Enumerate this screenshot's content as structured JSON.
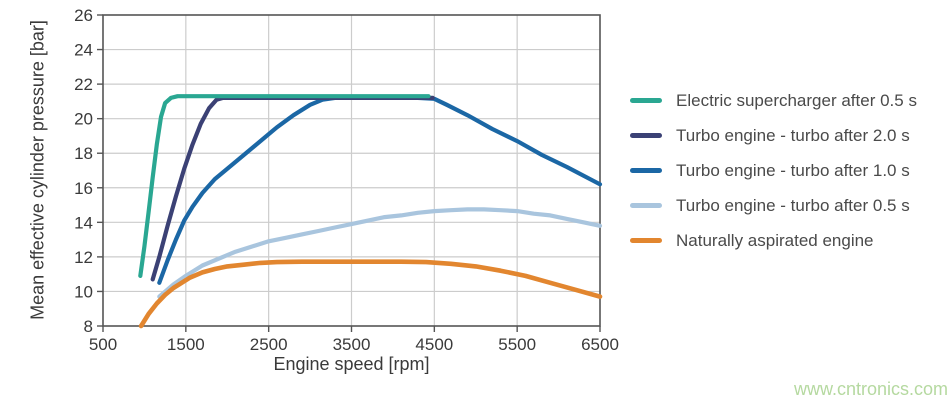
{
  "watermark": {
    "text": "www.cntronics.com",
    "color": "#b5d9a0"
  },
  "colors": {
    "background": "#ffffff",
    "grid": "#cccccc",
    "axis": "#555555",
    "tick_text": "#3a3a3a",
    "legend_text": "#4a4a4a"
  },
  "chart_data": {
    "type": "line",
    "title": "",
    "xlabel": "Engine speed [rpm]",
    "ylabel": "Mean effective cylinder pressure [bar]",
    "xlim": [
      500,
      6500
    ],
    "ylim": [
      8,
      26
    ],
    "x_ticks": [
      500,
      1500,
      2500,
      3500,
      4500,
      5500,
      6500
    ],
    "y_ticks": [
      8,
      10,
      12,
      14,
      16,
      18,
      20,
      22,
      24,
      26
    ],
    "grid": true,
    "legend_position": "right",
    "series": [
      {
        "id": "electric-supercharger",
        "name": "Electric supercharger after 0.5 s",
        "color": "#2aa792",
        "stroke_width": 4.2,
        "points": [
          [
            950,
            10.9
          ],
          [
            1000,
            12.6
          ],
          [
            1050,
            14.6
          ],
          [
            1100,
            16.6
          ],
          [
            1150,
            18.5
          ],
          [
            1200,
            20.1
          ],
          [
            1250,
            20.9
          ],
          [
            1320,
            21.2
          ],
          [
            1400,
            21.3
          ],
          [
            2000,
            21.3
          ],
          [
            2500,
            21.3
          ],
          [
            3000,
            21.3
          ],
          [
            3500,
            21.3
          ],
          [
            4000,
            21.3
          ],
          [
            4430,
            21.3
          ]
        ]
      },
      {
        "id": "turbo-2-0s",
        "name": "Turbo engine - turbo after 2.0 s",
        "color": "#3b4175",
        "stroke_width": 4.2,
        "points": [
          [
            1100,
            10.7
          ],
          [
            1180,
            12.0
          ],
          [
            1280,
            13.8
          ],
          [
            1380,
            15.5
          ],
          [
            1480,
            17.1
          ],
          [
            1580,
            18.5
          ],
          [
            1680,
            19.7
          ],
          [
            1780,
            20.6
          ],
          [
            1870,
            21.1
          ],
          [
            1950,
            21.2
          ],
          [
            2500,
            21.2
          ],
          [
            3000,
            21.2
          ],
          [
            3500,
            21.2
          ],
          [
            4000,
            21.2
          ],
          [
            4480,
            21.2
          ]
        ]
      },
      {
        "id": "turbo-1-0s",
        "name": "Turbo engine - turbo after 1.0 s",
        "color": "#1b67a5",
        "stroke_width": 4.2,
        "points": [
          [
            1180,
            10.5
          ],
          [
            1280,
            11.8
          ],
          [
            1380,
            13.0
          ],
          [
            1480,
            14.1
          ],
          [
            1580,
            14.9
          ],
          [
            1700,
            15.7
          ],
          [
            1850,
            16.5
          ],
          [
            2000,
            17.1
          ],
          [
            2200,
            17.9
          ],
          [
            2400,
            18.7
          ],
          [
            2600,
            19.5
          ],
          [
            2800,
            20.2
          ],
          [
            3000,
            20.8
          ],
          [
            3150,
            21.1
          ],
          [
            3300,
            21.2
          ],
          [
            3800,
            21.2
          ],
          [
            4300,
            21.2
          ],
          [
            4500,
            21.15
          ],
          [
            4650,
            20.8
          ],
          [
            4900,
            20.2
          ],
          [
            5200,
            19.4
          ],
          [
            5500,
            18.7
          ],
          [
            5800,
            17.9
          ],
          [
            6100,
            17.2
          ],
          [
            6500,
            16.2
          ]
        ]
      },
      {
        "id": "turbo-0-5s",
        "name": "Turbo engine - turbo after 0.5 s",
        "color": "#a9c5de",
        "stroke_width": 4.2,
        "points": [
          [
            1180,
            9.7
          ],
          [
            1350,
            10.4
          ],
          [
            1500,
            10.9
          ],
          [
            1700,
            11.5
          ],
          [
            1900,
            11.9
          ],
          [
            2100,
            12.3
          ],
          [
            2300,
            12.6
          ],
          [
            2500,
            12.9
          ],
          [
            2700,
            13.1
          ],
          [
            2900,
            13.3
          ],
          [
            3100,
            13.5
          ],
          [
            3300,
            13.7
          ],
          [
            3500,
            13.9
          ],
          [
            3700,
            14.1
          ],
          [
            3900,
            14.3
          ],
          [
            4100,
            14.4
          ],
          [
            4300,
            14.55
          ],
          [
            4500,
            14.65
          ],
          [
            4700,
            14.7
          ],
          [
            4900,
            14.75
          ],
          [
            5100,
            14.75
          ],
          [
            5300,
            14.7
          ],
          [
            5500,
            14.65
          ],
          [
            5700,
            14.5
          ],
          [
            5900,
            14.4
          ],
          [
            6100,
            14.2
          ],
          [
            6300,
            14.0
          ],
          [
            6500,
            13.8
          ]
        ]
      },
      {
        "id": "naturally-aspirated",
        "name": "Naturally aspirated engine",
        "color": "#e2862f",
        "stroke_width": 4.6,
        "points": [
          [
            960,
            8.0
          ],
          [
            1050,
            8.7
          ],
          [
            1150,
            9.3
          ],
          [
            1250,
            9.8
          ],
          [
            1350,
            10.2
          ],
          [
            1450,
            10.5
          ],
          [
            1550,
            10.8
          ],
          [
            1700,
            11.1
          ],
          [
            1850,
            11.3
          ],
          [
            2000,
            11.45
          ],
          [
            2200,
            11.55
          ],
          [
            2400,
            11.65
          ],
          [
            2600,
            11.7
          ],
          [
            2900,
            11.72
          ],
          [
            3200,
            11.72
          ],
          [
            3500,
            11.72
          ],
          [
            3800,
            11.72
          ],
          [
            4100,
            11.72
          ],
          [
            4400,
            11.7
          ],
          [
            4700,
            11.6
          ],
          [
            5000,
            11.45
          ],
          [
            5300,
            11.2
          ],
          [
            5600,
            10.9
          ],
          [
            5900,
            10.5
          ],
          [
            6200,
            10.1
          ],
          [
            6500,
            9.7
          ]
        ]
      }
    ]
  }
}
